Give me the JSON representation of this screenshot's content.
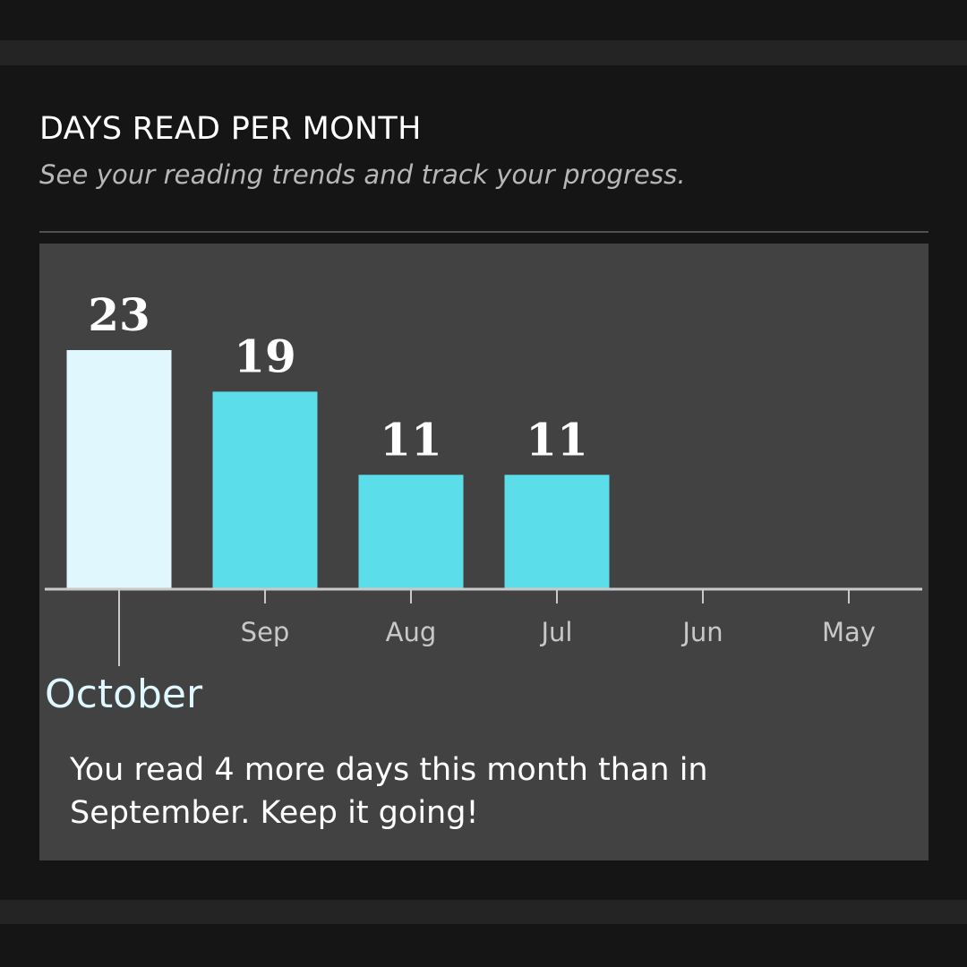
{
  "header": {
    "title": "DAYS READ PER MONTH",
    "subtitle": "See your reading trends and track your progress."
  },
  "chart_data": {
    "type": "bar",
    "categories": [
      "Oct",
      "Sep",
      "Aug",
      "Jul",
      "Jun",
      "May"
    ],
    "values": [
      23,
      19,
      11,
      11,
      null,
      null
    ],
    "tick_labels": [
      "",
      "Sep",
      "Aug",
      "Jul",
      "Jun",
      "May"
    ],
    "selected_index": 0,
    "ylim": [
      0,
      23
    ],
    "colors": {
      "selected_bar": "#e0f7fd",
      "bar": "#5cdeea",
      "axis": "#c9c9c9",
      "tick_label": "#c8c8c8",
      "value_label": "#ffffff"
    }
  },
  "selection": {
    "month_label": "October",
    "message": "You read 4 more days this month than in September. Keep it going!"
  }
}
